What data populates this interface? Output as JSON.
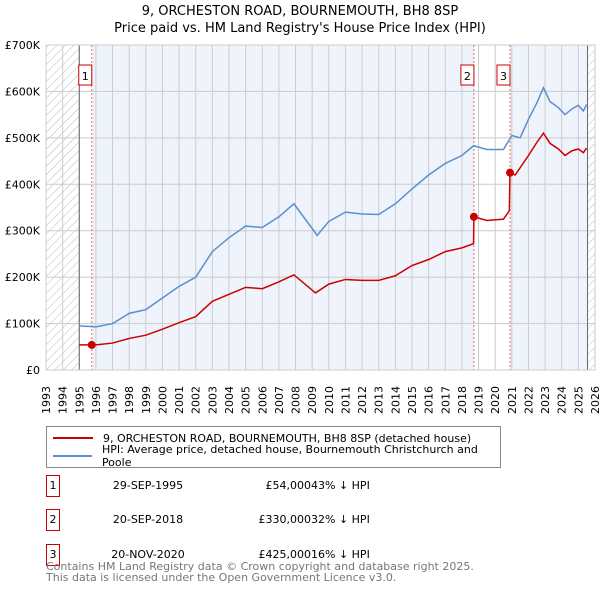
{
  "chart_data": {
    "type": "line",
    "title": "9, ORCHESTON ROAD, BOURNEMOUTH, BH8 8SP",
    "subtitle": "Price paid vs. HM Land Registry's House Price Index (HPI)",
    "xlim": [
      1993,
      2026
    ],
    "ylim": [
      0,
      700000
    ],
    "x_ticks": [
      "1993",
      "1994",
      "1995",
      "1996",
      "1997",
      "1998",
      "1999",
      "2000",
      "2001",
      "2002",
      "2003",
      "2004",
      "2005",
      "2006",
      "2007",
      "2008",
      "2009",
      "2010",
      "2011",
      "2012",
      "2013",
      "2014",
      "2015",
      "2016",
      "2017",
      "2018",
      "2019",
      "2020",
      "2021",
      "2022",
      "2023",
      "2024",
      "2025",
      "2026"
    ],
    "y_ticks": [
      {
        "v": 0,
        "l": "£0"
      },
      {
        "v": 100000,
        "l": "£100K"
      },
      {
        "v": 200000,
        "l": "£200K"
      },
      {
        "v": 300000,
        "l": "£300K"
      },
      {
        "v": 400000,
        "l": "£400K"
      },
      {
        "v": 500000,
        "l": "£500K"
      },
      {
        "v": 600000,
        "l": "£600K"
      },
      {
        "v": 700000,
        "l": "£700K"
      }
    ],
    "series": [
      {
        "name": "9, ORCHESTON ROAD, BOURNEMOUTH, BH8 8SP (detached house)",
        "color": "#cc0000",
        "x": [
          1995,
          1996,
          1997,
          1998,
          1999,
          2000,
          2001,
          2002,
          2003,
          2004,
          2005,
          2006,
          2007,
          2007.9,
          2009.2,
          2010,
          2011,
          2012,
          2013,
          2014,
          2015,
          2016,
          2017,
          2018,
          2018.7,
          2018.72,
          2019.5,
          2020.5,
          2020.85,
          2020.89,
          2021.2,
          2022,
          2022.5,
          2022.9,
          2023.3,
          2023.8,
          2024.2,
          2024.6,
          2025,
          2025.3,
          2025.5
        ],
        "y": [
          54000,
          54000,
          58000,
          68000,
          75000,
          88000,
          102000,
          115000,
          148000,
          163000,
          178000,
          175000,
          190000,
          205000,
          166000,
          185000,
          195000,
          193000,
          193000,
          203000,
          225000,
          238000,
          255000,
          263000,
          272000,
          330000,
          322000,
          325000,
          343000,
          425000,
          420000,
          462000,
          490000,
          510000,
          488000,
          476000,
          462000,
          472000,
          476000,
          468000,
          478000
        ]
      },
      {
        "name": "HPI: Average price, detached house, Bournemouth Christchurch and Poole",
        "color": "#5b8fd0",
        "x": [
          1995,
          1996,
          1997,
          1998,
          1999,
          2000,
          2001,
          2002,
          2003,
          2004,
          2005,
          2006,
          2007,
          2007.9,
          2009.3,
          2010,
          2011,
          2012,
          2013,
          2014,
          2015,
          2016,
          2017,
          2018,
          2018.7,
          2019.5,
          2020.5,
          2021,
          2021.5,
          2022,
          2022.5,
          2022.9,
          2023.3,
          2023.8,
          2024.2,
          2024.6,
          2025,
          2025.3,
          2025.5
        ],
        "y": [
          95000,
          93000,
          100000,
          122000,
          130000,
          155000,
          180000,
          200000,
          255000,
          285000,
          310000,
          307000,
          330000,
          358000,
          290000,
          320000,
          340000,
          336000,
          335000,
          358000,
          390000,
          420000,
          445000,
          462000,
          483000,
          475000,
          475000,
          505000,
          500000,
          540000,
          575000,
          608000,
          578000,
          565000,
          550000,
          562000,
          570000,
          558000,
          572000
        ]
      }
    ],
    "sales": [
      {
        "id": "1",
        "x": 1995.75,
        "y": 54000
      },
      {
        "id": "2",
        "x": 2018.72,
        "y": 330000
      },
      {
        "id": "3",
        "x": 2020.89,
        "y": 425000
      }
    ],
    "data_end": 2025.55
  },
  "legend": [
    "9, ORCHESTON ROAD, BOURNEMOUTH, BH8 8SP (detached house)",
    "HPI: Average price, detached house, Bournemouth Christchurch and Poole"
  ],
  "table": [
    {
      "id": "1",
      "date": "29-SEP-1995",
      "price": "£54,000",
      "hpi": "43% ↓ HPI"
    },
    {
      "id": "2",
      "date": "20-SEP-2018",
      "price": "£330,000",
      "hpi": "32% ↓ HPI"
    },
    {
      "id": "3",
      "date": "20-NOV-2020",
      "price": "£425,000",
      "hpi": "16% ↓ HPI"
    }
  ],
  "footer": [
    "Contains HM Land Registry data © Crown copyright and database right 2025.",
    "This data is licensed under the Open Government Licence v3.0."
  ]
}
